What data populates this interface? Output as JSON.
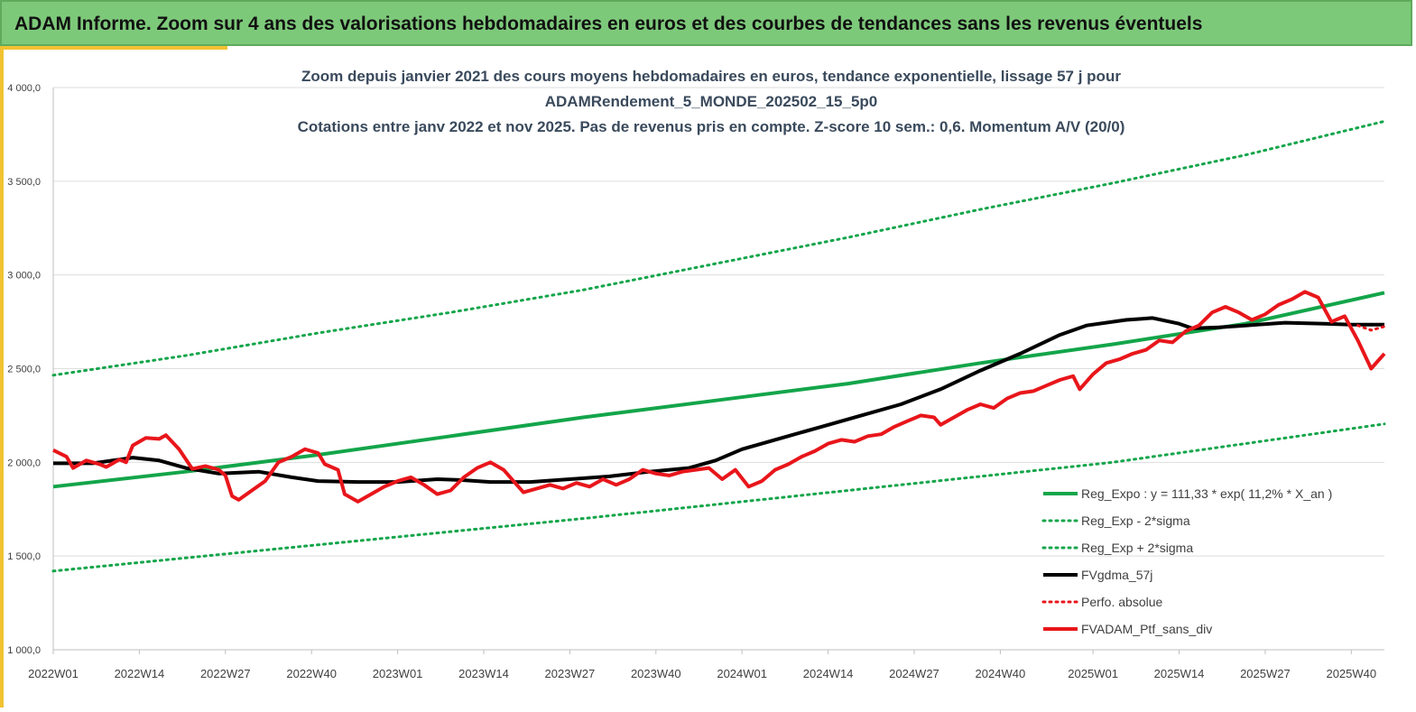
{
  "header": {
    "title": "ADAM Informe. Zoom sur 4 ans des valorisations hebdomadaires en euros et des courbes de tendances sans les revenus éventuels"
  },
  "chart_data": {
    "type": "line",
    "title_lines": [
      "Zoom depuis janvier 2021 des cours moyens hebdomadaires  en euros, tendance exponentielle, lissage 57 j pour",
      "ADAMRendement_5_MONDE_202502_15_5p0",
      "Cotations  entre janv 2022 et nov 2025. Pas de revenus pris en compte. Z-score 10 sem.: 0,6. Momentum A/V (20/0)"
    ],
    "xlabel": "",
    "ylabel": "",
    "x_range": [
      0,
      201
    ],
    "x_ticks": [
      {
        "week": 0,
        "label": "2022W01"
      },
      {
        "week": 13,
        "label": "2022W14"
      },
      {
        "week": 26,
        "label": "2022W27"
      },
      {
        "week": 39,
        "label": "2022W40"
      },
      {
        "week": 52,
        "label": "2023W01"
      },
      {
        "week": 65,
        "label": "2023W14"
      },
      {
        "week": 78,
        "label": "2023W27"
      },
      {
        "week": 91,
        "label": "2023W40"
      },
      {
        "week": 104,
        "label": "2024W01"
      },
      {
        "week": 117,
        "label": "2024W14"
      },
      {
        "week": 130,
        "label": "2024W27"
      },
      {
        "week": 143,
        "label": "2024W40"
      },
      {
        "week": 157,
        "label": "2025W01"
      },
      {
        "week": 170,
        "label": "2025W14"
      },
      {
        "week": 183,
        "label": "2025W27"
      },
      {
        "week": 196,
        "label": "2025W40"
      }
    ],
    "ylim": [
      1000,
      4000
    ],
    "y_ticks": [
      {
        "value": 1000,
        "label": "1 000,0"
      },
      {
        "value": 1500,
        "label": "1 500,0"
      },
      {
        "value": 2000,
        "label": "2 000,0"
      },
      {
        "value": 2500,
        "label": "2 500,0"
      },
      {
        "value": 3000,
        "label": "3 000,0"
      },
      {
        "value": 3500,
        "label": "3 500,0"
      },
      {
        "value": 4000,
        "label": "4 000,0"
      }
    ],
    "grid": "horizontal",
    "legend_position": "bottom-right",
    "series": [
      {
        "name": "Reg_Expo : y = 111,33 * exp( 11,2% *  X_an )",
        "color": "#13a54a",
        "style": "solid",
        "width": 4,
        "points": [
          [
            0,
            1870
          ],
          [
            20,
            1950
          ],
          [
            40,
            2040
          ],
          [
            60,
            2140
          ],
          [
            80,
            2240
          ],
          [
            100,
            2330
          ],
          [
            120,
            2420
          ],
          [
            140,
            2530
          ],
          [
            160,
            2630
          ],
          [
            180,
            2740
          ],
          [
            201,
            2905
          ]
        ]
      },
      {
        "name": "Reg_Exp - 2*sigma",
        "color": "#13a54a",
        "style": "dotted",
        "width": 3,
        "points": [
          [
            0,
            1420
          ],
          [
            40,
            1560
          ],
          [
            80,
            1700
          ],
          [
            120,
            1850
          ],
          [
            160,
            2000
          ],
          [
            201,
            2205
          ]
        ]
      },
      {
        "name": "Reg_Exp + 2*sigma",
        "color": "#13a54a",
        "style": "dotted",
        "width": 3,
        "points": [
          [
            0,
            2465
          ],
          [
            20,
            2570
          ],
          [
            40,
            2690
          ],
          [
            60,
            2800
          ],
          [
            80,
            2920
          ],
          [
            100,
            3060
          ],
          [
            120,
            3200
          ],
          [
            140,
            3350
          ],
          [
            160,
            3490
          ],
          [
            180,
            3640
          ],
          [
            201,
            3820
          ]
        ]
      },
      {
        "name": "FVgdma_57j",
        "color": "#000000",
        "style": "solid",
        "width": 4,
        "points": [
          [
            0,
            1995
          ],
          [
            6,
            1995
          ],
          [
            12,
            2025
          ],
          [
            16,
            2010
          ],
          [
            20,
            1970
          ],
          [
            25,
            1940
          ],
          [
            31,
            1950
          ],
          [
            36,
            1920
          ],
          [
            40,
            1900
          ],
          [
            46,
            1895
          ],
          [
            52,
            1895
          ],
          [
            58,
            1910
          ],
          [
            62,
            1905
          ],
          [
            66,
            1895
          ],
          [
            72,
            1895
          ],
          [
            78,
            1910
          ],
          [
            84,
            1925
          ],
          [
            90,
            1950
          ],
          [
            96,
            1970
          ],
          [
            100,
            2010
          ],
          [
            104,
            2070
          ],
          [
            110,
            2130
          ],
          [
            116,
            2190
          ],
          [
            122,
            2250
          ],
          [
            128,
            2310
          ],
          [
            134,
            2390
          ],
          [
            140,
            2490
          ],
          [
            146,
            2580
          ],
          [
            152,
            2680
          ],
          [
            156,
            2730
          ],
          [
            162,
            2760
          ],
          [
            166,
            2770
          ],
          [
            170,
            2740
          ],
          [
            172,
            2715
          ],
          [
            176,
            2720
          ],
          [
            180,
            2730
          ],
          [
            186,
            2745
          ],
          [
            192,
            2740
          ],
          [
            196,
            2735
          ],
          [
            201,
            2735
          ]
        ]
      },
      {
        "name": "Perfo. absolue",
        "color": "#e8161b",
        "style": "dotted",
        "width": 3,
        "points": [
          [
            197,
            2730
          ],
          [
            199,
            2705
          ],
          [
            201,
            2725
          ]
        ]
      },
      {
        "name": "FVADAM_Ptf_sans_div",
        "color": "#e8161b",
        "style": "solid",
        "width": 4,
        "points": [
          [
            0,
            2065
          ],
          [
            2,
            2030
          ],
          [
            3,
            1970
          ],
          [
            5,
            2010
          ],
          [
            7,
            1990
          ],
          [
            8,
            1975
          ],
          [
            10,
            2015
          ],
          [
            11,
            2000
          ],
          [
            12,
            2090
          ],
          [
            14,
            2130
          ],
          [
            16,
            2125
          ],
          [
            17,
            2145
          ],
          [
            19,
            2070
          ],
          [
            21,
            1965
          ],
          [
            23,
            1980
          ],
          [
            25,
            1960
          ],
          [
            26,
            1930
          ],
          [
            27,
            1820
          ],
          [
            28,
            1800
          ],
          [
            30,
            1850
          ],
          [
            32,
            1900
          ],
          [
            34,
            2000
          ],
          [
            36,
            2030
          ],
          [
            38,
            2070
          ],
          [
            40,
            2050
          ],
          [
            41,
            1990
          ],
          [
            43,
            1960
          ],
          [
            44,
            1830
          ],
          [
            46,
            1790
          ],
          [
            48,
            1830
          ],
          [
            50,
            1870
          ],
          [
            52,
            1900
          ],
          [
            54,
            1920
          ],
          [
            56,
            1880
          ],
          [
            58,
            1830
          ],
          [
            60,
            1850
          ],
          [
            62,
            1920
          ],
          [
            64,
            1970
          ],
          [
            66,
            2000
          ],
          [
            68,
            1960
          ],
          [
            70,
            1880
          ],
          [
            71,
            1840
          ],
          [
            73,
            1860
          ],
          [
            75,
            1880
          ],
          [
            77,
            1860
          ],
          [
            79,
            1890
          ],
          [
            81,
            1870
          ],
          [
            83,
            1910
          ],
          [
            85,
            1880
          ],
          [
            87,
            1910
          ],
          [
            89,
            1960
          ],
          [
            91,
            1940
          ],
          [
            93,
            1930
          ],
          [
            95,
            1950
          ],
          [
            97,
            1960
          ],
          [
            99,
            1970
          ],
          [
            101,
            1910
          ],
          [
            103,
            1960
          ],
          [
            105,
            1870
          ],
          [
            107,
            1900
          ],
          [
            109,
            1960
          ],
          [
            111,
            1990
          ],
          [
            113,
            2030
          ],
          [
            115,
            2060
          ],
          [
            117,
            2100
          ],
          [
            119,
            2120
          ],
          [
            121,
            2110
          ],
          [
            123,
            2140
          ],
          [
            125,
            2150
          ],
          [
            127,
            2190
          ],
          [
            129,
            2220
          ],
          [
            131,
            2250
          ],
          [
            133,
            2240
          ],
          [
            134,
            2200
          ],
          [
            136,
            2240
          ],
          [
            138,
            2280
          ],
          [
            140,
            2310
          ],
          [
            142,
            2290
          ],
          [
            144,
            2340
          ],
          [
            146,
            2370
          ],
          [
            148,
            2380
          ],
          [
            150,
            2410
          ],
          [
            152,
            2440
          ],
          [
            154,
            2460
          ],
          [
            155,
            2390
          ],
          [
            157,
            2470
          ],
          [
            159,
            2530
          ],
          [
            161,
            2550
          ],
          [
            163,
            2580
          ],
          [
            165,
            2600
          ],
          [
            167,
            2650
          ],
          [
            169,
            2640
          ],
          [
            171,
            2700
          ],
          [
            173,
            2730
          ],
          [
            175,
            2800
          ],
          [
            177,
            2830
          ],
          [
            179,
            2800
          ],
          [
            181,
            2760
          ],
          [
            183,
            2790
          ],
          [
            185,
            2840
          ],
          [
            187,
            2870
          ],
          [
            189,
            2910
          ],
          [
            191,
            2880
          ],
          [
            193,
            2750
          ],
          [
            195,
            2780
          ],
          [
            197,
            2650
          ],
          [
            199,
            2500
          ],
          [
            201,
            2580
          ]
        ]
      }
    ],
    "x_extent_weeks": 201
  }
}
